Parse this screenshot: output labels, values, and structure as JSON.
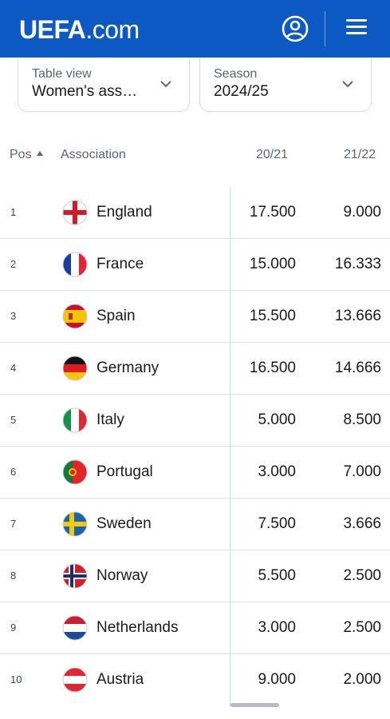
{
  "header": {
    "logo_bold": "UEFA",
    "logo_rest": ".com",
    "account_icon": "user-circle-icon",
    "menu_icon": "hamburger-menu-icon",
    "brand_color": "#0d59c4"
  },
  "filters": {
    "view": {
      "label": "Table view",
      "value": "Women's association club coefficients"
    },
    "season": {
      "label": "Season",
      "value": "2024/25"
    }
  },
  "table": {
    "columns": {
      "pos": "Pos",
      "association": "Association",
      "c1": "20/21",
      "c2": "21/22"
    },
    "rows": [
      {
        "pos": "1",
        "name": "England",
        "v1": "17.500",
        "v2": "9.000"
      },
      {
        "pos": "2",
        "name": "France",
        "v1": "15.000",
        "v2": "16.333"
      },
      {
        "pos": "3",
        "name": "Spain",
        "v1": "15.500",
        "v2": "13.666"
      },
      {
        "pos": "4",
        "name": "Germany",
        "v1": "16.500",
        "v2": "14.666"
      },
      {
        "pos": "5",
        "name": "Italy",
        "v1": "5.000",
        "v2": "8.500"
      },
      {
        "pos": "6",
        "name": "Portugal",
        "v1": "3.000",
        "v2": "7.000"
      },
      {
        "pos": "7",
        "name": "Sweden",
        "v1": "7.500",
        "v2": "3.666"
      },
      {
        "pos": "8",
        "name": "Norway",
        "v1": "5.500",
        "v2": "2.500"
      },
      {
        "pos": "9",
        "name": "Netherlands",
        "v1": "3.000",
        "v2": "2.500"
      },
      {
        "pos": "10",
        "name": "Austria",
        "v1": "9.000",
        "v2": "2.000"
      }
    ]
  }
}
